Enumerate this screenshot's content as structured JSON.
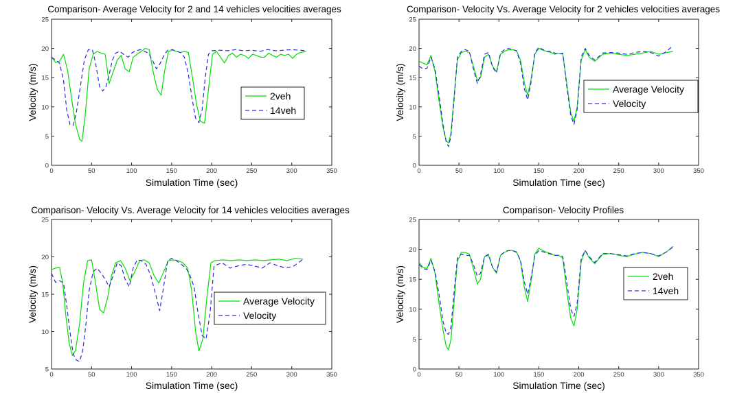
{
  "colors": {
    "green": "#00e000",
    "blue": "#2a2ae0"
  },
  "chart_data": [
    {
      "type": "line",
      "title": "Comparison-  Average Velocity for 2 and 14 vehicles velocities averages",
      "xlabel": "Simulation Time (sec)",
      "ylabel": "Velocity (m/s)",
      "xlim": [
        0,
        350
      ],
      "ylim": [
        0,
        25
      ],
      "xticks": [
        "0",
        "50",
        "100",
        "150",
        "200",
        "250",
        "300",
        "350"
      ],
      "yticks": [
        "0",
        "5",
        "10",
        "15",
        "20",
        "25"
      ],
      "legend_position": "center-right",
      "series": [
        {
          "name": "2veh",
          "style": "solid",
          "color": "#00e000",
          "x": [
            0,
            5,
            10,
            15,
            20,
            25,
            30,
            35,
            38,
            42,
            47,
            52,
            57,
            62,
            67,
            72,
            77,
            82,
            87,
            92,
            97,
            102,
            107,
            112,
            117,
            122,
            127,
            132,
            137,
            141,
            146,
            151,
            156,
            161,
            166,
            171,
            176,
            181,
            186,
            191,
            196,
            201,
            206,
            211,
            216,
            221,
            226,
            231,
            236,
            241,
            246,
            251,
            256,
            261,
            266,
            271,
            276,
            281,
            286,
            291,
            296,
            301,
            306,
            311,
            318
          ],
          "y": [
            18.5,
            17.6,
            17.8,
            19.0,
            16.3,
            11.5,
            7.0,
            4.5,
            4.1,
            8.5,
            16.5,
            19.0,
            19.5,
            19.2,
            19.0,
            14.0,
            16.0,
            18.0,
            18.8,
            16.5,
            16.0,
            18.5,
            19.0,
            19.5,
            20.0,
            19.8,
            16.0,
            13.0,
            12.0,
            16.0,
            19.5,
            19.7,
            19.5,
            19.3,
            19.5,
            19.3,
            15.0,
            10.5,
            7.5,
            7.2,
            13.0,
            19.0,
            19.5,
            18.5,
            17.5,
            18.8,
            19.2,
            18.5,
            19.0,
            18.8,
            18.3,
            19.0,
            18.8,
            18.5,
            18.5,
            19.2,
            18.8,
            18.5,
            19.0,
            18.8,
            19.0,
            18.3,
            19.0,
            19.3,
            19.5
          ]
        },
        {
          "name": "14veh",
          "style": "dashed",
          "color": "#2a2ae0",
          "x": [
            0,
            5,
            10,
            15,
            19,
            23,
            27,
            31,
            36,
            41,
            46,
            51,
            55,
            60,
            64,
            68,
            72,
            76,
            80,
            85,
            90,
            96,
            101,
            106,
            111,
            116,
            121,
            126,
            131,
            136,
            141,
            146,
            151,
            156,
            161,
            166,
            171,
            176,
            180,
            184,
            188,
            192,
            196,
            200,
            210,
            220,
            230,
            240,
            250,
            260,
            270,
            280,
            290,
            300,
            310,
            318
          ],
          "y": [
            18.5,
            18.0,
            17.5,
            14.5,
            9.5,
            7.0,
            6.8,
            9.0,
            13.5,
            18.0,
            19.8,
            19.8,
            17.5,
            13.5,
            12.7,
            13.5,
            15.5,
            18.0,
            19.2,
            19.5,
            19.0,
            18.5,
            19.3,
            19.6,
            19.8,
            19.5,
            19.2,
            18.0,
            16.5,
            17.5,
            19.0,
            19.8,
            19.8,
            19.5,
            19.3,
            18.5,
            15.5,
            11.0,
            8.0,
            7.3,
            9.5,
            15.0,
            19.0,
            19.6,
            19.7,
            19.6,
            19.8,
            19.6,
            19.7,
            19.5,
            19.8,
            19.6,
            19.7,
            19.8,
            19.7,
            19.6
          ]
        }
      ]
    },
    {
      "type": "line",
      "title": "Comparison- Velocity Vs. Average Velocity for 2 vehicles velocities averages",
      "xlabel": "Simulation Time (sec)",
      "ylabel": "Velocity (m/s)",
      "xlim": [
        0,
        350
      ],
      "ylim": [
        0,
        25
      ],
      "xticks": [
        "0",
        "50",
        "100",
        "150",
        "200",
        "250",
        "300",
        "350"
      ],
      "yticks": [
        "0",
        "5",
        "10",
        "15",
        "20",
        "25"
      ],
      "legend_position": "center-right",
      "series": [
        {
          "name": "Average Velocity",
          "style": "solid",
          "color": "#00e000",
          "x": [
            0,
            5,
            10,
            15,
            20,
            25,
            30,
            34,
            37,
            40,
            44,
            48,
            53,
            58,
            63,
            68,
            73,
            77,
            82,
            87,
            92,
            97,
            102,
            107,
            112,
            117,
            122,
            127,
            132,
            136,
            140,
            145,
            150,
            155,
            160,
            165,
            170,
            175,
            180,
            185,
            190,
            194,
            198,
            203,
            208,
            213,
            220,
            230,
            240,
            250,
            260,
            270,
            280,
            290,
            300,
            310,
            318
          ],
          "y": [
            17.8,
            17.5,
            17.2,
            18.8,
            16.0,
            11.0,
            6.5,
            4.2,
            3.8,
            5.5,
            12.0,
            18.0,
            19.3,
            19.5,
            19.3,
            17.0,
            14.5,
            15.0,
            18.5,
            19.0,
            17.0,
            16.0,
            19.0,
            19.5,
            19.8,
            19.8,
            19.6,
            18.0,
            14.0,
            12.0,
            14.5,
            19.0,
            20.0,
            19.7,
            19.5,
            19.3,
            19.0,
            19.2,
            19.0,
            14.0,
            9.0,
            7.5,
            10.0,
            18.0,
            19.8,
            18.5,
            17.8,
            19.0,
            19.2,
            19.0,
            18.8,
            19.0,
            19.2,
            19.5,
            19.0,
            19.3,
            19.5
          ]
        },
        {
          "name": "Velocity",
          "style": "dashed",
          "color": "#2a2ae0",
          "x": [
            0,
            5,
            10,
            15,
            20,
            25,
            30,
            34,
            37,
            40,
            44,
            48,
            53,
            58,
            63,
            68,
            73,
            77,
            82,
            87,
            92,
            97,
            102,
            107,
            112,
            117,
            122,
            127,
            132,
            136,
            140,
            145,
            150,
            155,
            160,
            165,
            170,
            175,
            180,
            185,
            190,
            194,
            198,
            203,
            208,
            213,
            220,
            230,
            240,
            250,
            260,
            270,
            280,
            290,
            300,
            310,
            318
          ],
          "y": [
            17.0,
            16.5,
            16.6,
            18.5,
            16.5,
            12.0,
            7.0,
            4.0,
            3.2,
            5.0,
            11.5,
            18.5,
            19.5,
            19.8,
            19.5,
            16.5,
            14.0,
            15.5,
            19.0,
            19.3,
            16.8,
            15.8,
            19.2,
            19.8,
            20.0,
            19.8,
            19.6,
            17.5,
            13.0,
            11.2,
            14.0,
            19.2,
            20.2,
            19.8,
            19.5,
            19.5,
            19.2,
            19.0,
            19.2,
            13.5,
            8.5,
            7.0,
            9.5,
            18.5,
            20.0,
            18.8,
            18.0,
            19.2,
            19.3,
            19.2,
            19.0,
            19.3,
            19.5,
            19.3,
            18.7,
            19.5,
            20.5
          ]
        }
      ]
    },
    {
      "type": "line",
      "title": "Comparison- Velocity Vs. Average Velocity for 14 vehicles velocities averages",
      "xlabel": "Simulation Time (sec)",
      "ylabel": "Velocity (m/s)",
      "xlim": [
        0,
        350
      ],
      "ylim": [
        5,
        25
      ],
      "xticks": [
        "0",
        "50",
        "100",
        "150",
        "200",
        "250",
        "300",
        "350"
      ],
      "yticks": [
        "5",
        "10",
        "15",
        "20",
        "25"
      ],
      "legend_position": "center-right",
      "series": [
        {
          "name": "Average Velocity",
          "style": "solid",
          "color": "#00e000",
          "x": [
            0,
            5,
            10,
            14,
            18,
            22,
            26,
            30,
            35,
            40,
            45,
            50,
            55,
            60,
            65,
            70,
            75,
            80,
            86,
            92,
            98,
            104,
            110,
            116,
            122,
            128,
            134,
            140,
            146,
            152,
            158,
            164,
            170,
            175,
            180,
            184,
            189,
            194,
            199,
            204,
            214,
            224,
            234,
            244,
            254,
            264,
            274,
            284,
            294,
            304,
            314
          ],
          "y": [
            18.3,
            18.5,
            18.6,
            16.5,
            12.0,
            8.5,
            6.8,
            7.5,
            11.0,
            16.5,
            19.5,
            19.6,
            16.5,
            13.0,
            12.5,
            14.5,
            17.5,
            19.2,
            19.5,
            18.5,
            16.8,
            18.0,
            19.5,
            19.6,
            19.2,
            17.5,
            16.5,
            18.0,
            19.5,
            19.6,
            19.5,
            19.2,
            18.5,
            15.5,
            10.0,
            7.4,
            9.0,
            14.5,
            19.2,
            19.5,
            19.6,
            19.5,
            19.6,
            19.5,
            19.6,
            19.5,
            19.6,
            19.7,
            19.5,
            19.8,
            19.7
          ]
        },
        {
          "name": "Velocity",
          "style": "dashed",
          "color": "#2a2ae0",
          "x": [
            0,
            5,
            10,
            15,
            19,
            23,
            27,
            31,
            35,
            39,
            43,
            47,
            52,
            57,
            62,
            67,
            72,
            77,
            82,
            87,
            92,
            97,
            102,
            107,
            112,
            118,
            124,
            130,
            135,
            140,
            145,
            150,
            156,
            162,
            168,
            173,
            178,
            183,
            188,
            193,
            198,
            203,
            213,
            223,
            233,
            243,
            253,
            263,
            273,
            283,
            293,
            303,
            313
          ],
          "y": [
            17.8,
            16.6,
            16.8,
            16.5,
            13.5,
            10.0,
            7.0,
            6.2,
            6.0,
            7.5,
            11.0,
            15.5,
            18.0,
            18.5,
            17.8,
            17.0,
            16.0,
            17.5,
            19.2,
            18.8,
            17.0,
            16.0,
            18.5,
            19.6,
            19.5,
            19.0,
            17.5,
            15.0,
            12.8,
            16.0,
            19.5,
            19.8,
            19.5,
            19.0,
            18.5,
            17.5,
            16.0,
            12.5,
            9.5,
            9.0,
            12.5,
            18.8,
            19.2,
            18.5,
            18.8,
            19.0,
            18.8,
            18.5,
            19.2,
            18.8,
            18.5,
            18.8,
            19.6
          ]
        }
      ]
    },
    {
      "type": "line",
      "title": "Comparison- Velocity Profiles",
      "xlabel": "Simulation Time (sec)",
      "ylabel": "Velocity (m/s)",
      "xlim": [
        0,
        350
      ],
      "ylim": [
        0,
        25
      ],
      "xticks": [
        "0",
        "50",
        "100",
        "150",
        "200",
        "250",
        "300",
        "350"
      ],
      "yticks": [
        "0",
        "5",
        "10",
        "15",
        "20",
        "25"
      ],
      "legend_position": "center-right",
      "series": [
        {
          "name": "2veh",
          "style": "solid",
          "color": "#00e000",
          "x": [
            0,
            5,
            10,
            15,
            20,
            25,
            30,
            34,
            37,
            40,
            44,
            48,
            53,
            58,
            63,
            68,
            73,
            77,
            82,
            87,
            92,
            97,
            102,
            107,
            112,
            117,
            122,
            127,
            132,
            136,
            140,
            145,
            150,
            155,
            160,
            165,
            170,
            175,
            180,
            185,
            190,
            194,
            198,
            203,
            208,
            213,
            220,
            230,
            240,
            250,
            260,
            270,
            280,
            290,
            300,
            310,
            318
          ],
          "y": [
            17.8,
            17.0,
            16.8,
            18.5,
            16.0,
            11.0,
            6.5,
            3.8,
            3.2,
            5.0,
            11.5,
            18.0,
            19.5,
            19.5,
            19.2,
            16.8,
            14.2,
            15.0,
            18.8,
            19.0,
            17.0,
            16.0,
            19.0,
            19.5,
            19.8,
            19.8,
            19.6,
            18.0,
            13.5,
            11.3,
            14.5,
            19.2,
            20.2,
            19.8,
            19.5,
            19.3,
            19.0,
            19.0,
            18.5,
            13.0,
            8.5,
            7.2,
            10.0,
            18.0,
            19.8,
            18.6,
            17.6,
            19.2,
            19.3,
            19.0,
            18.8,
            19.2,
            19.5,
            19.3,
            18.8,
            19.6,
            20.5
          ]
        },
        {
          "name": "14veh",
          "style": "dashed",
          "color": "#2a2ae0",
          "x": [
            0,
            5,
            10,
            15,
            20,
            25,
            30,
            34,
            37,
            40,
            44,
            48,
            53,
            58,
            63,
            68,
            73,
            77,
            82,
            87,
            92,
            97,
            102,
            107,
            112,
            117,
            122,
            127,
            132,
            136,
            140,
            145,
            150,
            155,
            160,
            165,
            170,
            175,
            180,
            185,
            190,
            194,
            198,
            203,
            208,
            213,
            220,
            230,
            240,
            250,
            260,
            270,
            280,
            290,
            300,
            310,
            318
          ],
          "y": [
            17.5,
            16.8,
            16.6,
            18.2,
            16.3,
            12.5,
            8.0,
            6.0,
            5.8,
            7.0,
            13.0,
            18.5,
            19.2,
            19.0,
            19.0,
            17.5,
            15.5,
            16.0,
            18.8,
            19.2,
            17.0,
            16.2,
            19.0,
            19.6,
            19.8,
            19.8,
            19.5,
            18.2,
            14.5,
            12.5,
            15.0,
            19.0,
            19.8,
            19.6,
            19.4,
            19.2,
            19.0,
            19.0,
            18.8,
            14.5,
            10.0,
            8.8,
            11.0,
            18.5,
            19.8,
            18.8,
            17.8,
            19.3,
            19.3,
            19.1,
            18.9,
            19.3,
            19.5,
            19.3,
            18.9,
            19.6,
            20.4
          ]
        }
      ]
    }
  ]
}
